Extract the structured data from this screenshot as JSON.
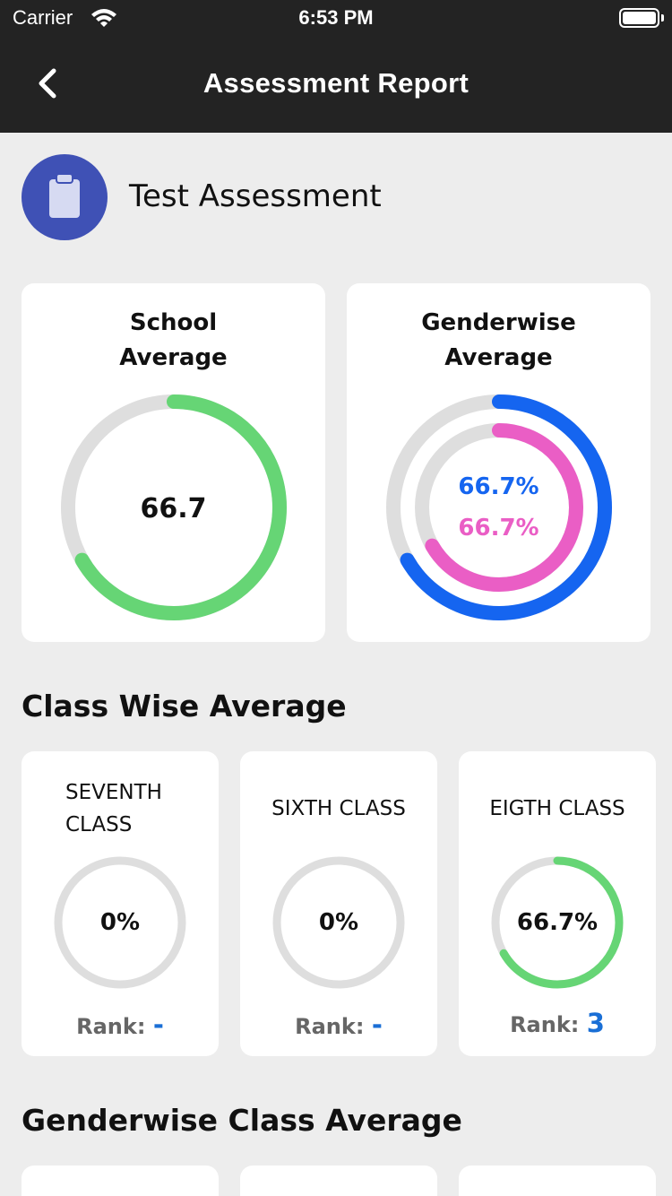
{
  "status": {
    "carrier": "Carrier",
    "time": "6:53 PM"
  },
  "nav": {
    "title": "Assessment Report",
    "back_icon": "chevron-left-icon"
  },
  "assessment": {
    "title": "Test Assessment",
    "icon": "clipboard-icon"
  },
  "school_average": {
    "title_line1": "School",
    "title_line2": "Average",
    "value_label": "66.7",
    "percent": 66.7,
    "color": "#66d575"
  },
  "genderwise_average": {
    "title_line1": "Genderwise",
    "title_line2": "Average",
    "series": [
      {
        "name": "outer",
        "label": "66.7%",
        "percent": 66.7,
        "color": "#1565f0"
      },
      {
        "name": "inner",
        "label": "66.7%",
        "percent": 66.7,
        "color": "#ea5ec5"
      }
    ]
  },
  "class_wise": {
    "title": "Class Wise Average",
    "classes": [
      {
        "name_line1": "SEVENTH",
        "name_line2": "CLASS",
        "value_label": "0%",
        "percent": 0,
        "rank_label": "Rank:",
        "rank": "-"
      },
      {
        "name_line1": "SIXTH CLASS",
        "name_line2": "",
        "value_label": "0%",
        "percent": 0,
        "rank_label": "Rank:",
        "rank": "-"
      },
      {
        "name_line1": "EIGTH CLASS",
        "name_line2": "",
        "value_label": "66.7%",
        "percent": 66.7,
        "rank_label": "Rank:",
        "rank": "3"
      }
    ]
  },
  "genderwise_class": {
    "title": "Genderwise Class Average"
  },
  "colors": {
    "track": "#dedede",
    "progress_green": "#66d575",
    "header_bg": "#232323",
    "accent_blue": "#1a6fd6"
  }
}
